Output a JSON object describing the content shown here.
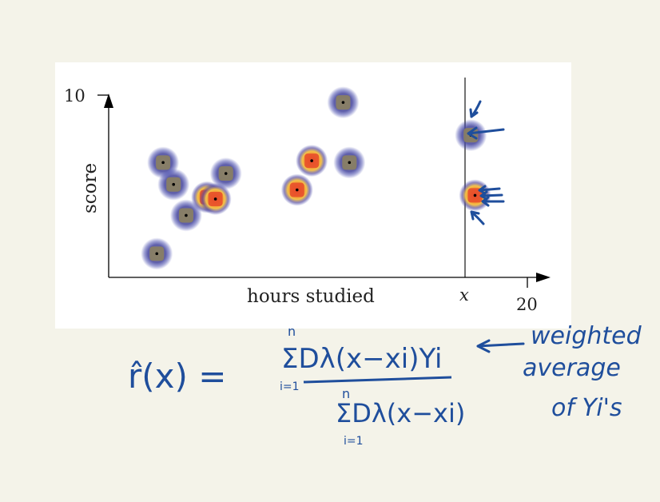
{
  "chart_data": {
    "type": "scatter",
    "xlabel": "hours studied",
    "ylabel": "score",
    "x_tick_labels": [
      "x",
      "20"
    ],
    "y_tick_labels": [
      "10"
    ],
    "xlim": [
      0,
      20
    ],
    "ylim": [
      0,
      10
    ],
    "query_x": 17.5,
    "points": [
      {
        "x": 2.3,
        "y": 1.3
      },
      {
        "x": 2.6,
        "y": 6.3
      },
      {
        "x": 3.1,
        "y": 5.1
      },
      {
        "x": 3.7,
        "y": 3.4
      },
      {
        "x": 4.7,
        "y": 4.4
      },
      {
        "x": 5.1,
        "y": 4.3
      },
      {
        "x": 5.6,
        "y": 5.7
      },
      {
        "x": 9.0,
        "y": 4.8
      },
      {
        "x": 9.7,
        "y": 6.4
      },
      {
        "x": 11.2,
        "y": 9.6
      },
      {
        "x": 11.5,
        "y": 6.3
      },
      {
        "x": 17.3,
        "y": 7.8
      },
      {
        "x": 17.5,
        "y": 4.5
      }
    ]
  },
  "annotation": {
    "lhs": "r̂(x) =",
    "numerator": "ΣDλ(x−xi)Yi",
    "denominator": "ΣDλ(x−xi)",
    "sum_upper": "n",
    "sum_lower": "i=1",
    "note_line1": "weighted",
    "note_line2": "average",
    "note_line3": "of Yi's",
    "ink_color": "#1f4e9c"
  }
}
